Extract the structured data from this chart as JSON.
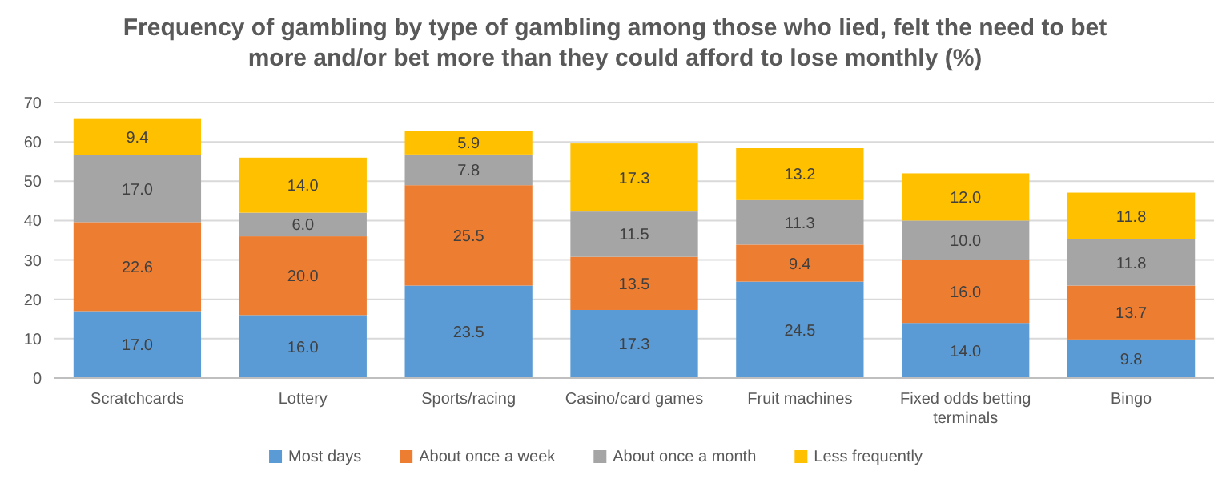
{
  "chart_data": {
    "type": "bar",
    "stacked": true,
    "title": "Frequency of gambling by type of gambling among those who lied, felt the need to bet more and/or bet more than they could afford to lose monthly (%)",
    "categories": [
      "Scratchcards",
      "Lottery",
      "Sports/racing",
      "Casino/card games",
      "Fruit machines",
      "Fixed odds betting terminals",
      "Bingo"
    ],
    "series": [
      {
        "name": "Most days",
        "color": "#5b9bd5",
        "values": [
          17.0,
          16.0,
          23.5,
          17.3,
          24.5,
          14.0,
          9.8
        ],
        "value_labels": [
          "17.0",
          "16.0",
          "23.5",
          "17.3",
          "24.5",
          "14.0",
          "9.8"
        ]
      },
      {
        "name": "About once a week",
        "color": "#ed7d31",
        "values": [
          22.6,
          20.0,
          25.5,
          13.5,
          9.4,
          16.0,
          13.7
        ],
        "value_labels": [
          "22.6",
          "20.0",
          "25.5",
          "13.5",
          "9.4",
          "16.0",
          "13.7"
        ]
      },
      {
        "name": "About once a month",
        "color": "#a5a5a5",
        "values": [
          17.0,
          6.0,
          7.8,
          11.5,
          11.3,
          10.0,
          11.8
        ],
        "value_labels": [
          "17.0",
          "6.0",
          "7.8",
          "11.5",
          "11.3",
          "10.0",
          "11.8"
        ]
      },
      {
        "name": "Less frequently",
        "color": "#ffc000",
        "values": [
          9.4,
          14.0,
          5.9,
          17.3,
          13.2,
          12.0,
          11.8
        ],
        "value_labels": [
          "9.4",
          "14.0",
          "5.9",
          "17.3",
          "13.2",
          "12.0",
          "11.8"
        ]
      }
    ],
    "ylim": [
      0,
      70
    ],
    "yticks": [
      0,
      10,
      20,
      30,
      40,
      50,
      60,
      70
    ],
    "grid": "y",
    "legend": "bottom"
  }
}
